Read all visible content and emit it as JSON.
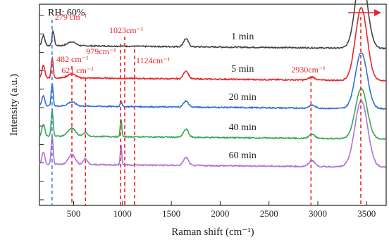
{
  "chart_data": {
    "type": "line",
    "title": "",
    "xlabel": "Raman shift (cm⁻¹)",
    "ylabel": "Intensity (a.u.)",
    "xlim": [
      150,
      3700
    ],
    "x_ticks": [
      500,
      1000,
      1500,
      2000,
      2500,
      3000,
      3500
    ],
    "y_ticks_count": 11,
    "grid": false,
    "humidity_label": "RH: 60%",
    "series": [
      {
        "name": "1 min",
        "color": "#444444",
        "baseline": 0.78,
        "scale": 1.0,
        "peaks": [
          [
            190,
            0.05,
            15
          ],
          [
            290,
            0.07,
            12
          ],
          [
            480,
            0.02,
            40
          ],
          [
            1650,
            0.04,
            25
          ],
          [
            2940,
            0.0,
            30
          ],
          [
            3445,
            0.38,
            60
          ]
        ]
      },
      {
        "name": "5 min",
        "color": "#e8262a",
        "baseline": 0.62,
        "scale": 1.0,
        "peaks": [
          [
            190,
            0.06,
            15
          ],
          [
            280,
            0.1,
            10
          ],
          [
            480,
            0.02,
            40
          ],
          [
            1650,
            0.04,
            25
          ],
          [
            2940,
            0.015,
            30
          ],
          [
            3445,
            0.36,
            60
          ]
        ]
      },
      {
        "name": "20 min",
        "color": "#2f6fd6",
        "baseline": 0.48,
        "scale": 1.0,
        "peaks": [
          [
            190,
            0.05,
            15
          ],
          [
            280,
            0.11,
            10
          ],
          [
            480,
            0.02,
            40
          ],
          [
            985,
            0.03,
            8
          ],
          [
            1650,
            0.03,
            25
          ],
          [
            2940,
            0.015,
            30
          ],
          [
            3445,
            0.28,
            60
          ]
        ]
      },
      {
        "name": "40 min",
        "color": "#35a853",
        "baseline": 0.33,
        "scale": 1.0,
        "peaks": [
          [
            190,
            0.06,
            15
          ],
          [
            280,
            0.13,
            10
          ],
          [
            480,
            0.04,
            40
          ],
          [
            620,
            0.02,
            20
          ],
          [
            985,
            0.09,
            8
          ],
          [
            1650,
            0.04,
            25
          ],
          [
            2940,
            0.02,
            30
          ],
          [
            3445,
            0.25,
            60
          ]
        ]
      },
      {
        "name": "60 min",
        "color": "#b06fd8",
        "baseline": 0.19,
        "scale": 1.0,
        "peaks": [
          [
            190,
            0.06,
            15
          ],
          [
            280,
            0.14,
            10
          ],
          [
            480,
            0.05,
            35
          ],
          [
            620,
            0.03,
            20
          ],
          [
            985,
            0.1,
            8
          ],
          [
            1650,
            0.04,
            25
          ],
          [
            2940,
            0.03,
            30
          ],
          [
            3445,
            0.33,
            65
          ]
        ]
      }
    ],
    "annotations": [
      {
        "x": 279,
        "text": "279 cm⁻¹",
        "color": "#3f7fe0"
      },
      {
        "x": 482,
        "text": "482 cm⁻¹",
        "color": "#e8262a"
      },
      {
        "x": 621,
        "text": "621 cm⁻¹",
        "color": "#e8262a"
      },
      {
        "x": 979,
        "text": "979cm⁻¹",
        "color": "#e8262a"
      },
      {
        "x": 1023,
        "text": "1023cm⁻¹",
        "color": "#e8262a"
      },
      {
        "x": 1124,
        "text": "1124cm⁻¹",
        "color": "#e8262a"
      },
      {
        "x": 2930,
        "text": "2930cm⁻¹",
        "color": "#e8262a"
      },
      {
        "x": 3440,
        "text": "",
        "color": "#e8262a"
      }
    ],
    "shift_arrow_color": "#e8262a"
  }
}
